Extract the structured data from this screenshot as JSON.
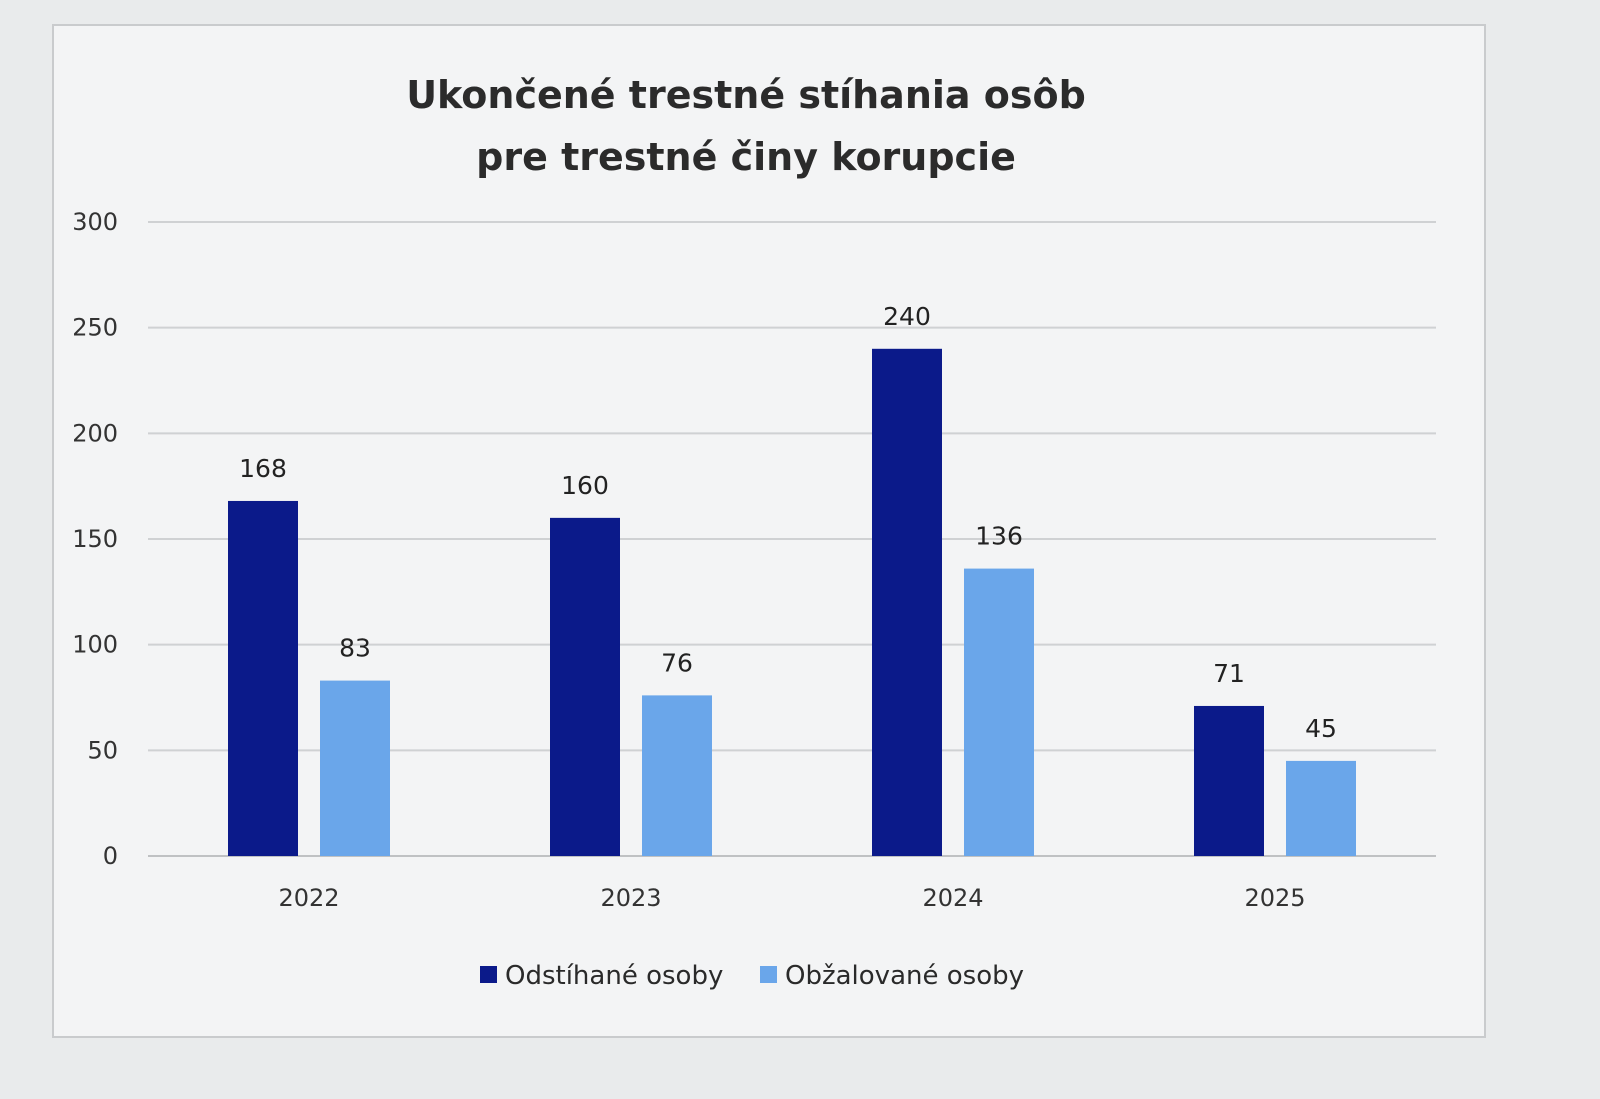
{
  "chart_data": {
    "type": "bar",
    "title": "Ukončené trestné stíhania osôb pre trestné činy korupcie",
    "title_lines": [
      "Ukončené trestné stíhania osôb",
      "pre trestné činy korupcie"
    ],
    "categories": [
      "2022",
      "2023",
      "2024",
      "2025"
    ],
    "series": [
      {
        "name": "Odstíhané osoby",
        "values": [
          168,
          160,
          240,
          71
        ],
        "color": "#0b1a8a"
      },
      {
        "name": "Obžalované osoby",
        "values": [
          83,
          76,
          136,
          45
        ],
        "color": "#6aa6ea"
      }
    ],
    "xlabel": "",
    "ylabel": "",
    "ylim": [
      0,
      300
    ],
    "yticks": [
      "0",
      "50",
      "100",
      "150",
      "200",
      "250",
      "300"
    ],
    "grid": true,
    "data_labels": true,
    "legend_position": "bottom"
  }
}
